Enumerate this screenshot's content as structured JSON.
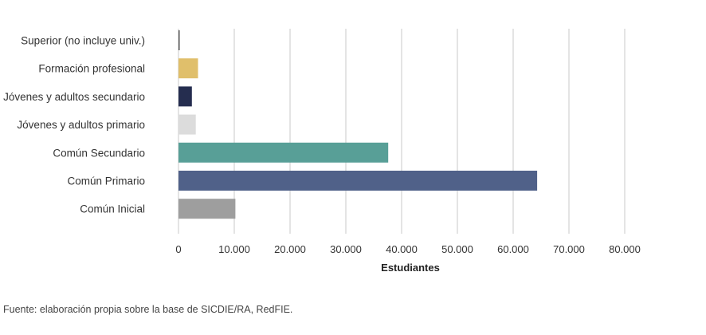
{
  "chart_data": {
    "type": "bar",
    "orientation": "horizontal",
    "categories": [
      "Superior (no incluye univ.)",
      "Formación profesional",
      "Jóvenes y adultos secundario",
      "Jóvenes y adultos primario",
      "Común Secundario",
      "Común Primario",
      "Común Inicial"
    ],
    "values": [
      200,
      3500,
      2400,
      3100,
      37600,
      64300,
      10200
    ],
    "colors": [
      "#555555",
      "#e0bf6b",
      "#252d4f",
      "#dcdcdc",
      "#589f97",
      "#506189",
      "#9e9e9e"
    ],
    "xlabel": "Estudiantes",
    "xlim": [
      0,
      80000
    ],
    "ticks": [
      0,
      10000,
      20000,
      30000,
      40000,
      50000,
      60000,
      70000,
      80000
    ],
    "tick_labels": [
      "0",
      "10.000",
      "20.000",
      "30.000",
      "40.000",
      "50.000",
      "60.000",
      "70.000",
      "80.000"
    ],
    "grid": true,
    "legend": "none"
  },
  "source_note": "Fuente: elaboración propia sobre la base de SICDIE/RA, RedFIE."
}
